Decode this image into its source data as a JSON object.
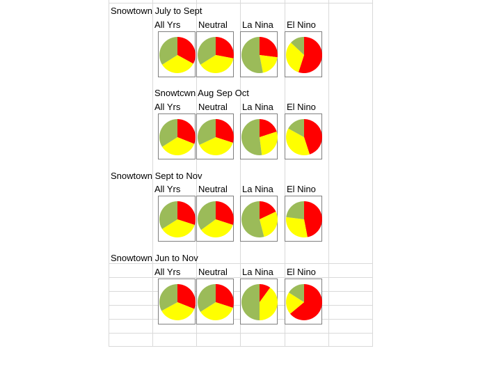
{
  "colors": {
    "Red": "#ff0000",
    "Yellow": "#ffff00",
    "Green": "#9bbb59"
  },
  "chart_data": [
    {
      "type": "pie",
      "title": "Snowtown July to Sept",
      "slice_order": [
        "Red",
        "Yellow",
        "Green"
      ],
      "charts": [
        {
          "label": "All Yrs",
          "values": [
            0.33,
            0.33,
            0.34
          ]
        },
        {
          "label": "Neutral",
          "values": [
            0.28,
            0.38,
            0.34
          ]
        },
        {
          "label": "La Nina",
          "values": [
            0.27,
            0.2,
            0.53
          ]
        },
        {
          "label": "El Nino",
          "values": [
            0.55,
            0.32,
            0.13
          ]
        }
      ]
    },
    {
      "type": "pie",
      "title": "Snowtcwn Aug Sep Oct",
      "slice_order": [
        "Red",
        "Yellow",
        "Green"
      ],
      "charts": [
        {
          "label": "All Yrs",
          "values": [
            0.31,
            0.35,
            0.34
          ]
        },
        {
          "label": "Neutral",
          "values": [
            0.3,
            0.38,
            0.32
          ]
        },
        {
          "label": "La Nina",
          "values": [
            0.2,
            0.28,
            0.52
          ]
        },
        {
          "label": "El Nino",
          "values": [
            0.45,
            0.38,
            0.17
          ]
        }
      ]
    },
    {
      "type": "pie",
      "title": "Snowtown Sept to Nov",
      "slice_order": [
        "Red",
        "Yellow",
        "Green"
      ],
      "charts": [
        {
          "label": "All Yrs",
          "values": [
            0.3,
            0.36,
            0.34
          ]
        },
        {
          "label": "Neutral",
          "values": [
            0.3,
            0.35,
            0.35
          ]
        },
        {
          "label": "La Nina",
          "values": [
            0.18,
            0.28,
            0.54
          ]
        },
        {
          "label": "El Nino",
          "values": [
            0.47,
            0.3,
            0.23
          ]
        }
      ]
    },
    {
      "type": "pie",
      "title": "Snowtown Jun to Nov",
      "slice_order": [
        "Red",
        "Yellow",
        "Green"
      ],
      "charts": [
        {
          "label": "All Yrs",
          "values": [
            0.31,
            0.36,
            0.33
          ]
        },
        {
          "label": "Neutral",
          "values": [
            0.3,
            0.36,
            0.34
          ]
        },
        {
          "label": "La Nina",
          "values": [
            0.1,
            0.4,
            0.5
          ]
        },
        {
          "label": "El Nino",
          "values": [
            0.64,
            0.2,
            0.16
          ]
        }
      ]
    }
  ]
}
